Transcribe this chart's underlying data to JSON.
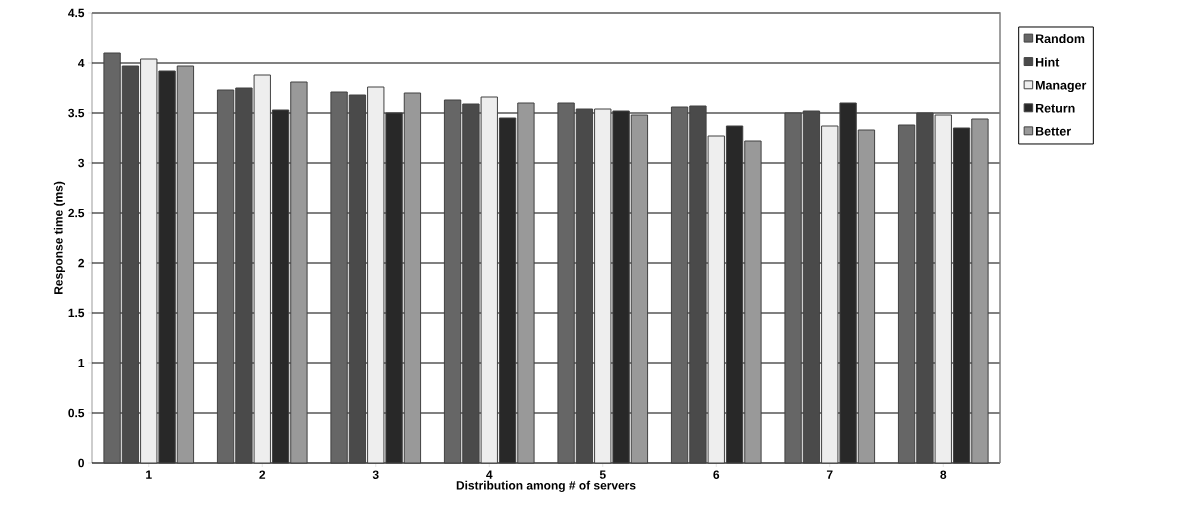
{
  "chart_data": {
    "type": "bar",
    "xlabel": "Distribution among # of servers",
    "ylabel": "Response time (ms)",
    "categories": [
      "1",
      "2",
      "3",
      "4",
      "5",
      "6",
      "7",
      "8"
    ],
    "series": [
      {
        "name": "Random",
        "color": "#666666",
        "values": [
          4.1,
          3.73,
          3.71,
          3.63,
          3.6,
          3.56,
          3.5,
          3.38
        ]
      },
      {
        "name": "Hint",
        "color": "#4a4a4a",
        "values": [
          3.97,
          3.75,
          3.68,
          3.59,
          3.54,
          3.57,
          3.52,
          3.5
        ]
      },
      {
        "name": "Manager",
        "color": "#eeeeee",
        "values": [
          4.04,
          3.88,
          3.76,
          3.66,
          3.54,
          3.27,
          3.37,
          3.48
        ]
      },
      {
        "name": "Return",
        "color": "#282828",
        "values": [
          3.92,
          3.53,
          3.5,
          3.45,
          3.52,
          3.37,
          3.6,
          3.35
        ]
      },
      {
        "name": "Better",
        "color": "#999999",
        "values": [
          3.97,
          3.81,
          3.7,
          3.6,
          3.48,
          3.22,
          3.33,
          3.44
        ]
      }
    ],
    "ylim": [
      0,
      4.5
    ],
    "yticks": [
      0,
      0.5,
      1,
      1.5,
      2,
      2.5,
      3,
      3.5,
      4,
      4.5
    ],
    "grid": "y",
    "legend": "right"
  }
}
